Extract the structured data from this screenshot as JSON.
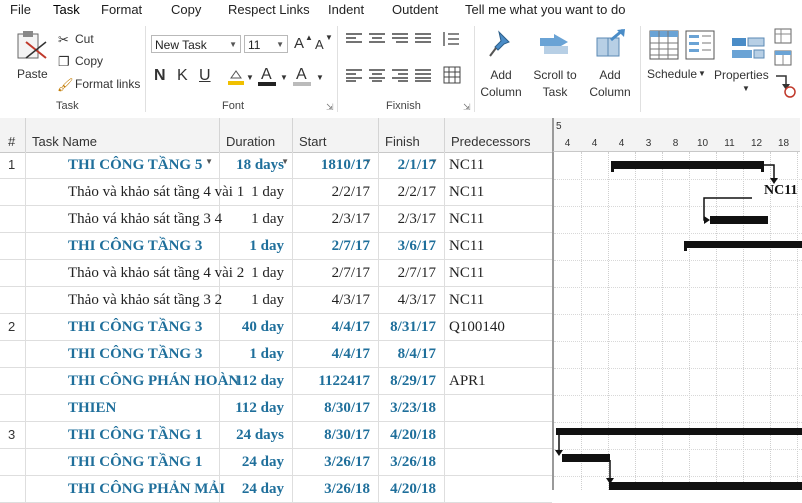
{
  "menu": [
    "File",
    "Task",
    "Format",
    "Copy",
    "Respect Links",
    "Indent",
    "Outdent",
    "Tell me what you want to do"
  ],
  "ribbon": {
    "paste_label": "Paste",
    "cut_label": "Cut",
    "copy_label": "Copy",
    "format_links_label": "Format links",
    "task_group": "Task",
    "font_name": "New Task",
    "font_size": "11",
    "font_group": "Font",
    "fixnish_group": "Fixnish",
    "add_column_1": "Add Column",
    "scroll_to_task": "Scroll to Task",
    "add_column_2": "Add Column",
    "schedule_label": "Schedule",
    "properties_label": "Properties",
    "bold": "N",
    "italic": "K",
    "underline": "U",
    "font_up": "A",
    "font_down": "A"
  },
  "columns": {
    "num": "#",
    "task_name": "Task Name",
    "duration": "Duration",
    "start": "Start",
    "finish": "Finish",
    "predecessors": "Predecessors"
  },
  "timeline": {
    "top": "5",
    "ticks": [
      "4",
      "4",
      "4",
      "3",
      "8",
      "10",
      "11",
      "12",
      "18"
    ]
  },
  "rows": [
    {
      "num": "1",
      "name": "THI CÔNG TẦNG 5",
      "duration": "18 days",
      "start": "1810/17",
      "finish": "2/1/17",
      "pred": "NC11",
      "summary": true
    },
    {
      "num": "",
      "name": "Thảo và khảo sát tầng 4 vài 1",
      "duration": "1 day",
      "start": "2/2/17",
      "finish": "2/2/17",
      "pred": "NC11",
      "summary": false
    },
    {
      "num": "",
      "name": "Thảo vá khảo sát tầng 3 4",
      "duration": "1 day",
      "start": "2/3/17",
      "finish": "2/3/17",
      "pred": "NC11",
      "summary": false
    },
    {
      "num": "",
      "name": "THI CÔNG TẦNG 3",
      "duration": "1 day",
      "start": "2/7/17",
      "finish": "3/6/17",
      "pred": "NC11",
      "summary": true
    },
    {
      "num": "",
      "name": "Thảo và khảo sát tầng 4 vài 2",
      "duration": "1 day",
      "start": "2/7/17",
      "finish": "2/7/17",
      "pred": "NC11",
      "summary": false
    },
    {
      "num": "",
      "name": "Thảo và khảo sát tầng 3 2",
      "duration": "1 day",
      "start": "4/3/17",
      "finish": "4/3/17",
      "pred": "NC11",
      "summary": false
    },
    {
      "num": "2",
      "name": "THI CÔNG TẦNG 3",
      "duration": "40 day",
      "start": "4/4/17",
      "finish": "8/31/17",
      "pred": "Q100140",
      "summary": true
    },
    {
      "num": "",
      "name": "THI CÔNG TẦNG 3",
      "duration": "1 day",
      "start": "4/4/17",
      "finish": "8/4/17",
      "pred": "",
      "summary": true
    },
    {
      "num": "",
      "name": "THI CÔNG PHÁN HOÀN",
      "duration": "112 day",
      "start": "1122417",
      "finish": "8/29/17",
      "pred": "APR1",
      "summary": true
    },
    {
      "num": "",
      "name": "THIEN",
      "duration": "112 day",
      "start": "8/30/17",
      "finish": "3/23/18",
      "pred": "",
      "summary": true
    },
    {
      "num": "3",
      "name": "THI CÔNG TẦNG 1",
      "duration": "24 days",
      "start": "8/30/17",
      "finish": "4/20/18",
      "pred": "",
      "summary": true
    },
    {
      "num": "",
      "name": "THI CÔNG TẦNG 1",
      "duration": "24 day",
      "start": "3/26/17",
      "finish": "3/26/18",
      "pred": "",
      "summary": true
    },
    {
      "num": "",
      "name": "THI CÔNG PHẢN MẢI",
      "duration": "24 day",
      "start": "3/26/18",
      "finish": "4/20/18",
      "pred": "",
      "summary": true
    }
  ],
  "gantt": {
    "label": "NC11"
  }
}
